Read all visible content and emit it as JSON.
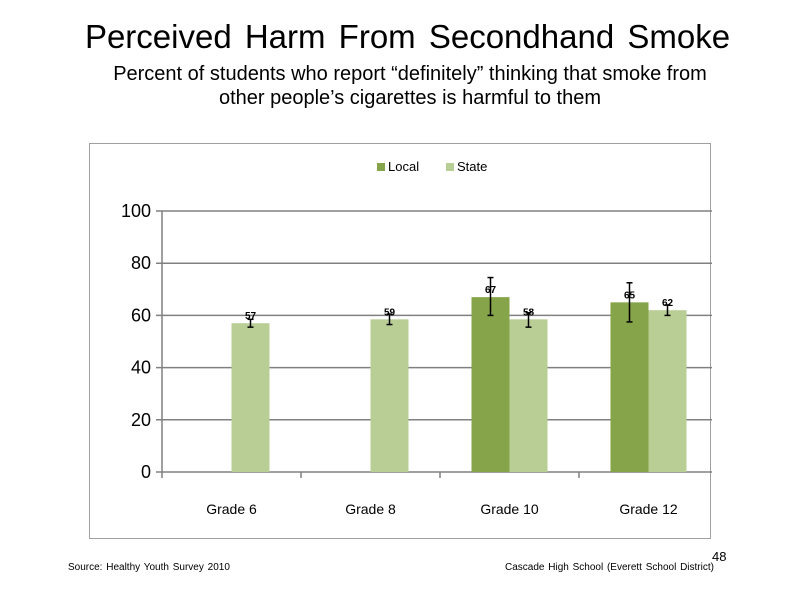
{
  "slide": {
    "title": "Perceived  Harm From Secondhand  Smoke",
    "subtitle_line1": "Percent of students who report “definitely” thinking that smoke from",
    "subtitle_line2": "other people’s cigarettes is harmful to them",
    "source": "Source: Healthy Youth Survey 2010",
    "school": "Cascade High School (Everett School District)",
    "page_number": "48"
  },
  "colors": {
    "local": "#86A44A",
    "state": "#B9CE95",
    "grid": "#808080",
    "error_bar": "#000000"
  },
  "chart_data": {
    "type": "bar",
    "title": "",
    "xlabel": "",
    "ylabel": "",
    "categories": [
      "Grade 6",
      "Grade 8",
      "Grade 10",
      "Grade 12"
    ],
    "series": [
      {
        "name": "Local",
        "values": [
          null,
          null,
          67,
          65
        ],
        "labels": [
          "",
          "",
          "67",
          "65"
        ],
        "error_low": [
          null,
          null,
          60,
          57.5
        ],
        "error_high": [
          null,
          null,
          74.5,
          72.5
        ]
      },
      {
        "name": "State",
        "values": [
          57,
          58.5,
          58.5,
          62
        ],
        "labels": [
          "57",
          "59",
          "58",
          "62"
        ],
        "error_low": [
          55.5,
          56.5,
          55.5,
          60
        ],
        "error_high": [
          58.5,
          60.5,
          61,
          64
        ]
      }
    ],
    "ylim": [
      0,
      100
    ],
    "yticks": [
      0,
      20,
      40,
      60,
      80,
      100
    ],
    "grid": true,
    "legend": "top-center"
  }
}
